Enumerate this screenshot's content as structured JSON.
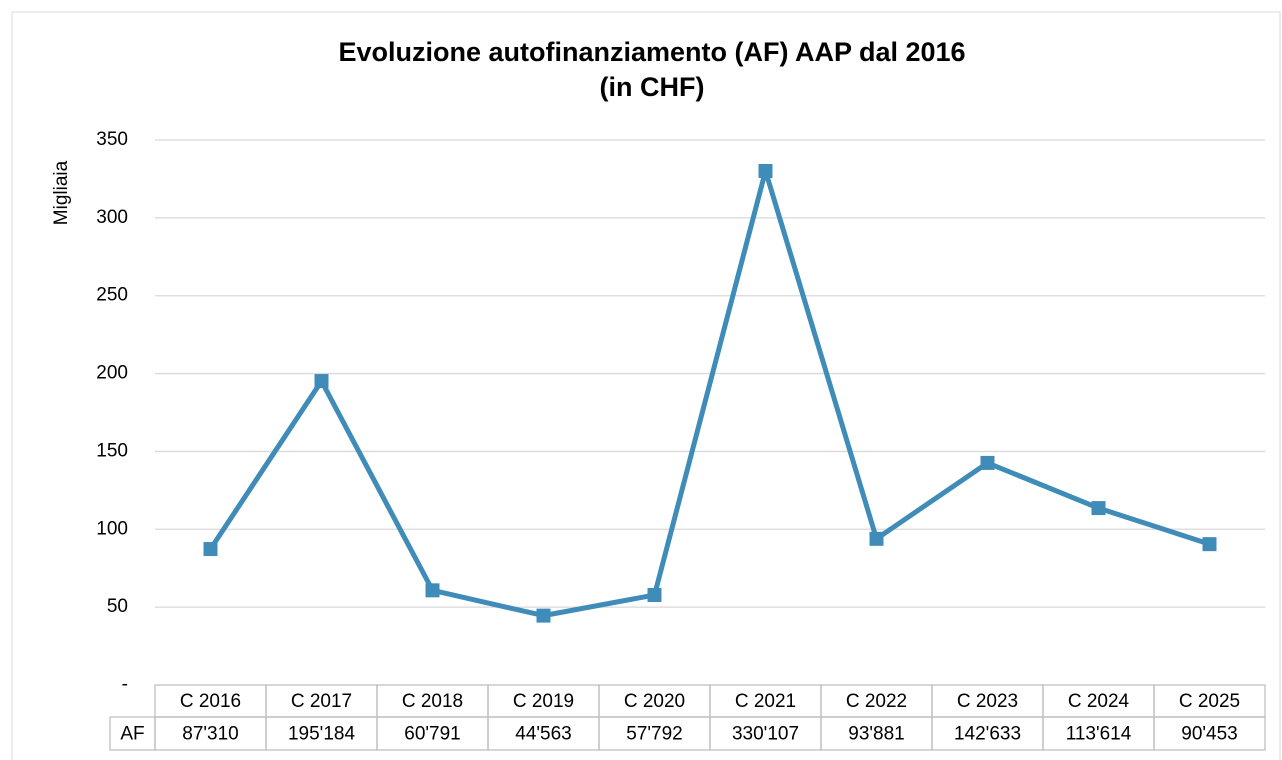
{
  "chart_data": {
    "type": "line",
    "title": [
      "Evoluzione autofinanziamento (AF) AAP dal 2016",
      "(in CHF)"
    ],
    "ylabel": "Migliaia",
    "categories": [
      "C 2016",
      "C 2017",
      "C 2018",
      "C 2019",
      "C 2020",
      "C 2021",
      "C 2022",
      "C 2023",
      "C 2024",
      "C 2025"
    ],
    "series": [
      {
        "name": "AF",
        "color": "#3f8cb9",
        "values": [
          87.31,
          195.184,
          60.791,
          44.563,
          57.792,
          330.107,
          93.881,
          142.633,
          113.614,
          90.453
        ],
        "value_labels": [
          "87'310",
          "195'184",
          "60'791",
          "44'563",
          "57'792",
          "330'107",
          "93'881",
          "142'633",
          "113'614",
          "90'453"
        ]
      }
    ],
    "ylim": [
      0,
      350
    ],
    "yticks": [
      {
        "value": 0,
        "label": "-"
      },
      50,
      100,
      150,
      200,
      250,
      300,
      350
    ],
    "grid": true
  }
}
